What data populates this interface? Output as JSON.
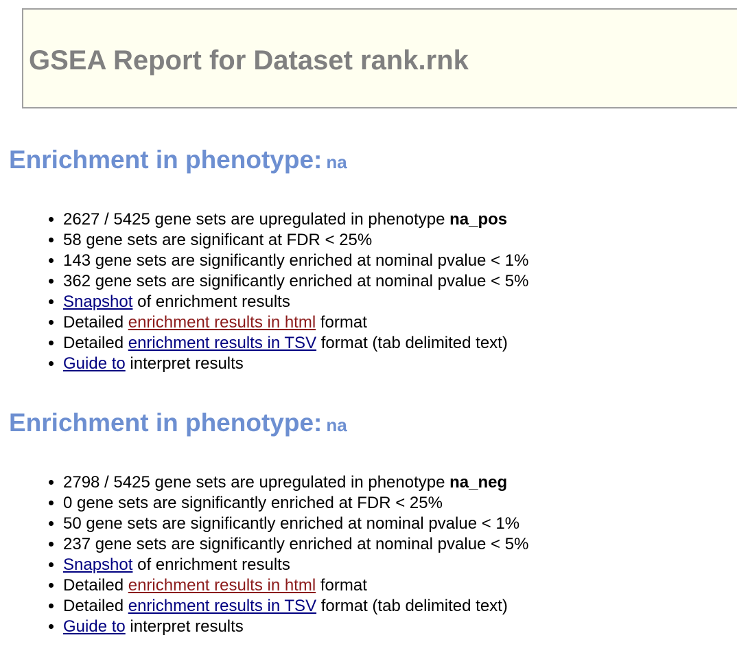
{
  "header": {
    "title": "GSEA Report for Dataset rank.rnk"
  },
  "colors": {
    "header_bg": "#fffff0",
    "header_border": "#a0a0a0",
    "title_gray": "#808080",
    "heading_blue": "#6d8fd1",
    "link_blue": "#000080",
    "link_red": "#8b1a1a"
  },
  "sections": [
    {
      "heading": "Enrichment in phenotype:",
      "phenotype": "na",
      "upregulated_count": "2627 / 5425 gene sets are upregulated in phenotype",
      "upregulated_phenotype": "na_pos",
      "fdr_line": "58 gene sets are significant at FDR < 25%",
      "pval1_line": "143 gene sets are significantly enriched at nominal pvalue < 1%",
      "pval5_line": "362 gene sets are significantly enriched at nominal pvalue < 5%",
      "snapshot_link": "Snapshot",
      "snapshot_rest": " of enrichment results",
      "html_prefix": "Detailed ",
      "html_link": "enrichment results in html",
      "html_suffix": " format",
      "tsv_prefix": "Detailed ",
      "tsv_link": "enrichment results in TSV",
      "tsv_suffix": " format (tab delimited text)",
      "guide_link": "Guide to",
      "guide_rest": " interpret results"
    },
    {
      "heading": "Enrichment in phenotype:",
      "phenotype": "na",
      "upregulated_count": "2798 / 5425 gene sets are upregulated in phenotype",
      "upregulated_phenotype": "na_neg",
      "fdr_line": "0 gene sets are significantly enriched at FDR < 25%",
      "pval1_line": "50 gene sets are significantly enriched at nominal pvalue < 1%",
      "pval5_line": "237 gene sets are significantly enriched at nominal pvalue < 5%",
      "snapshot_link": "Snapshot",
      "snapshot_rest": " of enrichment results",
      "html_prefix": "Detailed ",
      "html_link": "enrichment results in html",
      "html_suffix": " format",
      "tsv_prefix": "Detailed ",
      "tsv_link": "enrichment results in TSV",
      "tsv_suffix": " format (tab delimited text)",
      "guide_link": "Guide to",
      "guide_rest": " interpret results"
    }
  ]
}
